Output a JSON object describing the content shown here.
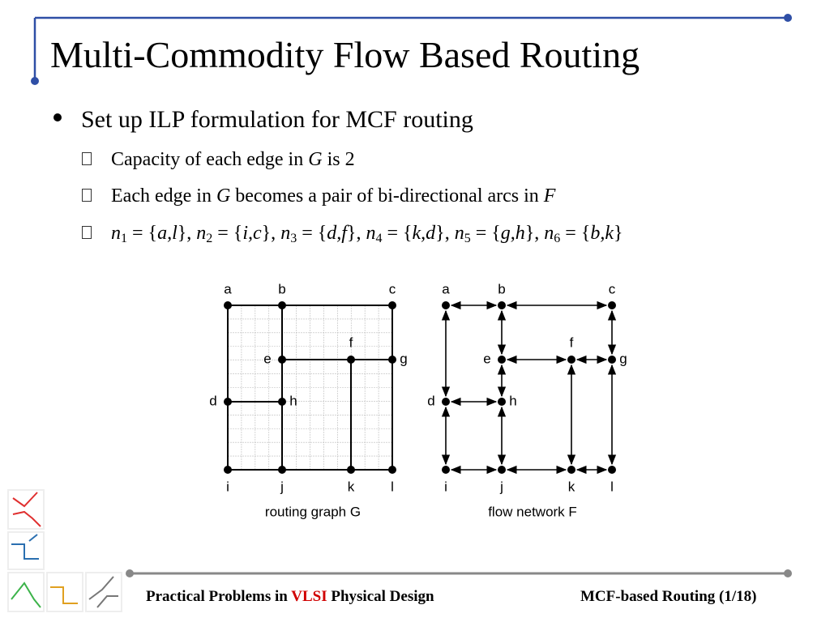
{
  "title": "Multi-Commodity Flow Based Routing",
  "bullets": [
    {
      "text": "Set up ILP formulation for MCF routing",
      "sub_bullets": [
        [
          "Capacity of each edge in ",
          "G",
          " is 2"
        ],
        [
          "Each edge in ",
          "G",
          " becomes a pair of bi-directional arcs in ",
          "F"
        ],
        [
          "n",
          "1",
          " = {",
          "a,l",
          "}, ",
          "n",
          "2",
          " = {",
          "i,c",
          "}, ",
          "n",
          "3",
          " = {",
          "d,f",
          "}, ",
          "n",
          "4",
          " = {",
          "k,d",
          "}, ",
          "n",
          "5",
          " = {",
          "g,h",
          "}, ",
          "n",
          "6",
          " = {",
          "b,k",
          "}"
        ]
      ]
    }
  ],
  "figures": [
    {
      "nodes": [
        "a",
        "b",
        "c",
        "e",
        "f",
        "g",
        "d",
        "h",
        "i",
        "j",
        "k",
        "l"
      ],
      "caption": "routing graph G"
    },
    {
      "nodes": [
        "a",
        "b",
        "c",
        "e",
        "f",
        "g",
        "d",
        "h",
        "i",
        "j",
        "k",
        "l"
      ],
      "caption": "flow network F"
    }
  ],
  "footer": {
    "left": [
      "Practical Problems in ",
      "VLSI",
      " Physical Design"
    ],
    "right": "MCF-based Routing (1/18)"
  }
}
